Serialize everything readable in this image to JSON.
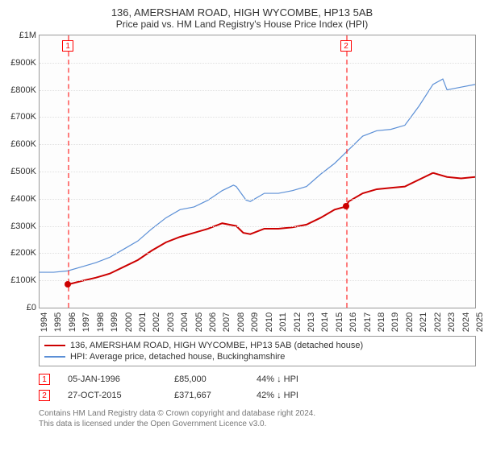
{
  "title": "136, AMERSHAM ROAD, HIGH WYCOMBE, HP13 5AB",
  "subtitle": "Price paid vs. HM Land Registry's House Price Index (HPI)",
  "chart": {
    "type": "line",
    "y": {
      "min": 0,
      "max": 1000000,
      "step": 100000,
      "labels": [
        "£0",
        "£100K",
        "£200K",
        "£300K",
        "£400K",
        "£500K",
        "£600K",
        "£700K",
        "£800K",
        "£900K",
        "£1M"
      ]
    },
    "x": {
      "min": 1994,
      "max": 2025,
      "labels": [
        "1994",
        "1995",
        "1996",
        "1997",
        "1998",
        "1999",
        "2000",
        "2001",
        "2002",
        "2003",
        "2004",
        "2005",
        "2006",
        "2007",
        "2008",
        "2009",
        "2010",
        "2011",
        "2012",
        "2013",
        "2014",
        "2015",
        "2016",
        "2017",
        "2018",
        "2019",
        "2020",
        "2021",
        "2022",
        "2023",
        "2024",
        "2025"
      ]
    },
    "background_color": "#fdfdfd",
    "grid_color": "#e0e0e0",
    "series": {
      "property": {
        "label": "136, AMERSHAM ROAD, HIGH WYCOMBE, HP13 5AB (detached house)",
        "color": "#cc0000",
        "width": 2,
        "points": [
          [
            1996.02,
            85000
          ],
          [
            1997,
            98000
          ],
          [
            1998,
            110000
          ],
          [
            1999,
            125000
          ],
          [
            2000,
            150000
          ],
          [
            2001,
            175000
          ],
          [
            2002,
            210000
          ],
          [
            2003,
            240000
          ],
          [
            2004,
            260000
          ],
          [
            2005,
            275000
          ],
          [
            2006,
            290000
          ],
          [
            2007,
            310000
          ],
          [
            2008,
            300000
          ],
          [
            2008.5,
            275000
          ],
          [
            2009,
            270000
          ],
          [
            2010,
            290000
          ],
          [
            2011,
            290000
          ],
          [
            2012,
            295000
          ],
          [
            2013,
            305000
          ],
          [
            2014,
            330000
          ],
          [
            2015,
            360000
          ],
          [
            2015.82,
            371667
          ],
          [
            2016,
            390000
          ],
          [
            2017,
            420000
          ],
          [
            2018,
            435000
          ],
          [
            2019,
            440000
          ],
          [
            2020,
            445000
          ],
          [
            2021,
            470000
          ],
          [
            2022,
            495000
          ],
          [
            2023,
            480000
          ],
          [
            2024,
            475000
          ],
          [
            2025,
            480000
          ]
        ]
      },
      "hpi": {
        "label": "HPI: Average price, detached house, Buckinghamshire",
        "color": "#5b8fd6",
        "width": 1.2,
        "points": [
          [
            1994,
            130000
          ],
          [
            1995,
            130000
          ],
          [
            1996,
            135000
          ],
          [
            1997,
            150000
          ],
          [
            1998,
            165000
          ],
          [
            1999,
            185000
          ],
          [
            2000,
            215000
          ],
          [
            2001,
            245000
          ],
          [
            2002,
            290000
          ],
          [
            2003,
            330000
          ],
          [
            2004,
            360000
          ],
          [
            2005,
            370000
          ],
          [
            2006,
            395000
          ],
          [
            2007,
            430000
          ],
          [
            2007.8,
            450000
          ],
          [
            2008,
            445000
          ],
          [
            2008.7,
            395000
          ],
          [
            2009,
            390000
          ],
          [
            2010,
            420000
          ],
          [
            2011,
            420000
          ],
          [
            2012,
            430000
          ],
          [
            2013,
            445000
          ],
          [
            2014,
            490000
          ],
          [
            2015,
            530000
          ],
          [
            2016,
            580000
          ],
          [
            2017,
            630000
          ],
          [
            2018,
            650000
          ],
          [
            2019,
            655000
          ],
          [
            2020,
            670000
          ],
          [
            2021,
            740000
          ],
          [
            2022,
            820000
          ],
          [
            2022.7,
            840000
          ],
          [
            2023,
            800000
          ],
          [
            2024,
            810000
          ],
          [
            2025,
            820000
          ]
        ]
      }
    },
    "sale_markers": [
      {
        "index": "1",
        "year": 1996.02,
        "price": 85000
      },
      {
        "index": "2",
        "year": 2015.82,
        "price": 371667
      }
    ]
  },
  "sales": [
    {
      "index": "1",
      "date": "05-JAN-1996",
      "price": "£85,000",
      "cmp": "44% ↓ HPI"
    },
    {
      "index": "2",
      "date": "27-OCT-2015",
      "price": "£371,667",
      "cmp": "42% ↓ HPI"
    }
  ],
  "footer1": "Contains HM Land Registry data © Crown copyright and database right 2024.",
  "footer2": "This data is licensed under the Open Government Licence v3.0."
}
